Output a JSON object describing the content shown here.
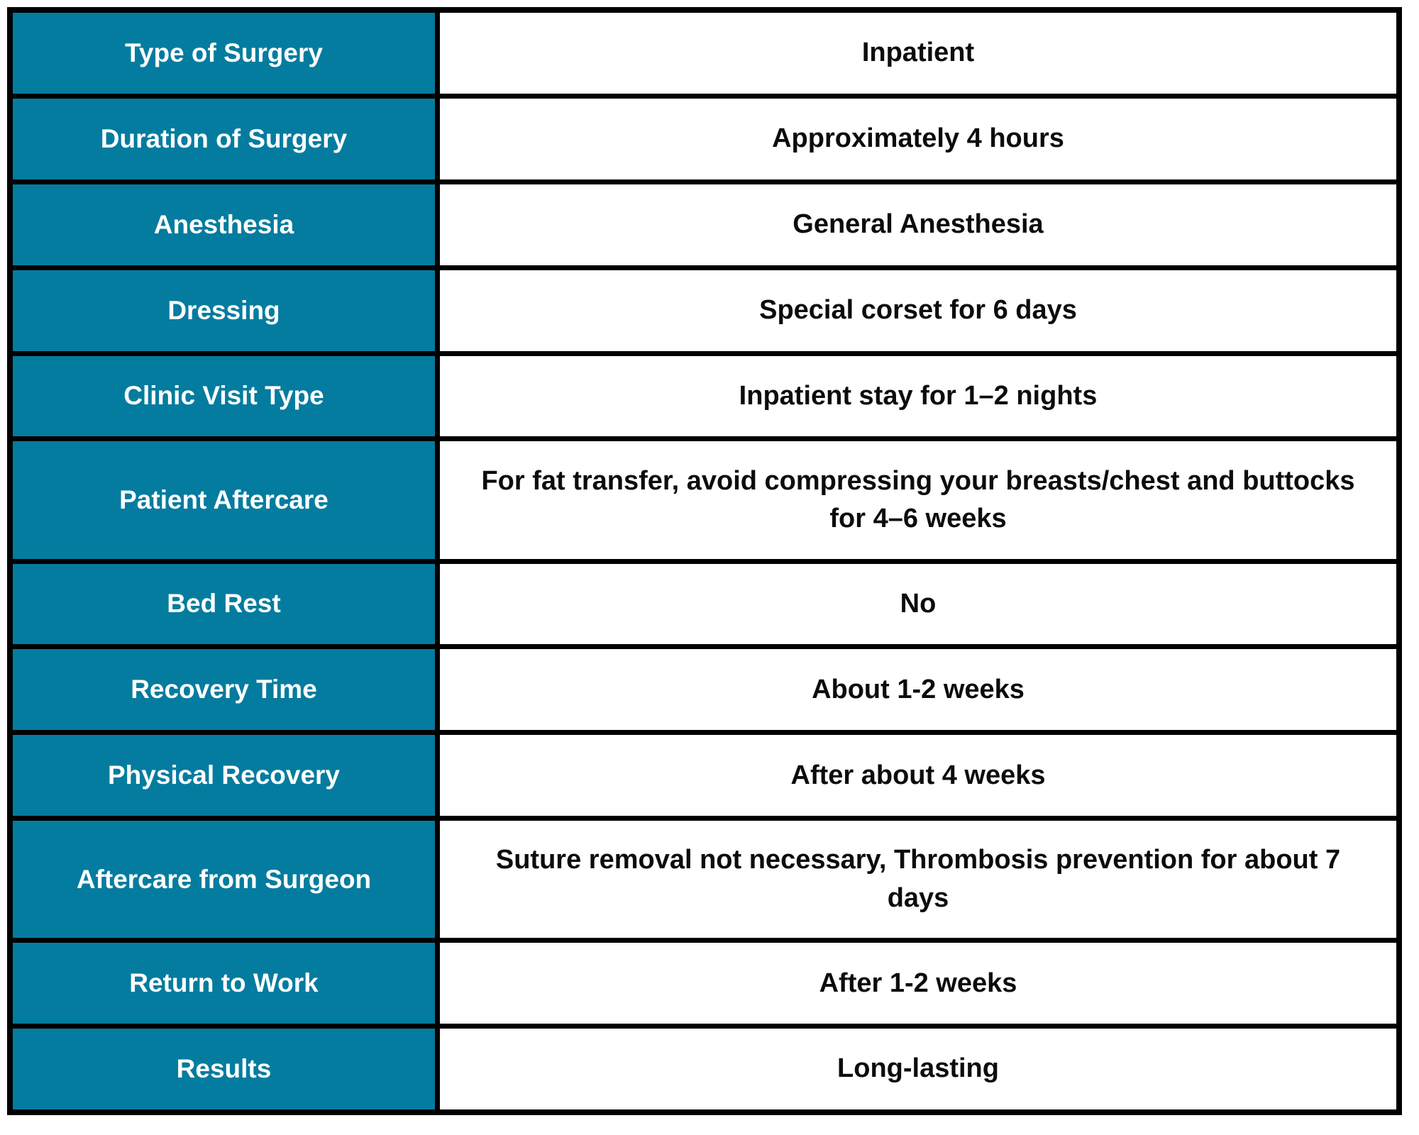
{
  "table": {
    "description": "Surgery information summary table",
    "colors": {
      "label_bg": "#047c9f",
      "label_text": "#ffffff",
      "value_bg": "#ffffff",
      "value_text": "#0c0c0c",
      "border": "#000000"
    },
    "rows": [
      {
        "label": "Type of Surgery",
        "value": "Inpatient"
      },
      {
        "label": "Duration of Surgery",
        "value": "Approximately 4 hours"
      },
      {
        "label": "Anesthesia",
        "value": "General Anesthesia"
      },
      {
        "label": "Dressing",
        "value": "Special corset for 6 days"
      },
      {
        "label": "Clinic Visit Type",
        "value": "Inpatient stay for 1–2 nights"
      },
      {
        "label": "Patient Aftercare",
        "value": "For fat transfer, avoid compressing your breasts/chest and buttocks for 4–6 weeks"
      },
      {
        "label": "Bed Rest",
        "value": "No"
      },
      {
        "label": "Recovery Time",
        "value": "About 1-2 weeks"
      },
      {
        "label": "Physical Recovery",
        "value": "After about 4 weeks"
      },
      {
        "label": "Aftercare from Surgeon",
        "value": "Suture removal not necessary, Thrombosis prevention for about 7 days"
      },
      {
        "label": "Return to Work",
        "value": "After 1-2 weeks"
      },
      {
        "label": "Results",
        "value": "Long-lasting"
      }
    ]
  }
}
